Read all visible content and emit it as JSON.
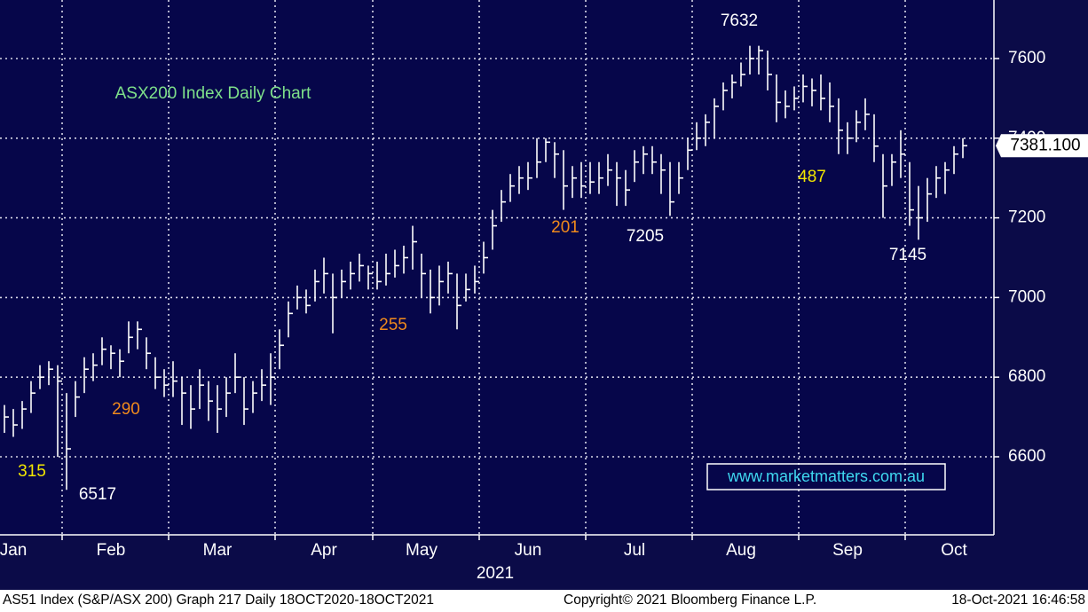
{
  "chart_data": {
    "type": "ohlc",
    "title": "ASX200 Index Daily Chart",
    "title_color": "#7ee08a",
    "color": "#ffffff",
    "xlabel": "2021",
    "watermark": "www.marketmatters.com.au",
    "ylim": [
      6404,
      7747
    ],
    "yticks": [
      6600,
      6800,
      7000,
      7200,
      7400,
      7600
    ],
    "xlim": [
      -0.5,
      111.5
    ],
    "xticks": [
      {
        "value": 1,
        "label": "Jan"
      },
      {
        "value": 12,
        "label": "Feb"
      },
      {
        "value": 24,
        "label": "Mar"
      },
      {
        "value": 36,
        "label": "Apr"
      },
      {
        "value": 47,
        "label": "May"
      },
      {
        "value": 59,
        "label": "Jun"
      },
      {
        "value": 71,
        "label": "Jul"
      },
      {
        "value": 83,
        "label": "Aug"
      },
      {
        "value": 95,
        "label": "Sep"
      },
      {
        "value": 107,
        "label": "Oct"
      }
    ],
    "xgrid": [
      6.5,
      18.5,
      30.5,
      41.5,
      53.5,
      65.5,
      77.5,
      89.5,
      101.5
    ],
    "grid": true,
    "high": [
      6730,
      6720,
      6740,
      6790,
      6830,
      6840,
      6830,
      6760,
      6790,
      6850,
      6860,
      6900,
      6880,
      6870,
      6940,
      6940,
      6900,
      6850,
      6820,
      6840,
      6800,
      6780,
      6820,
      6790,
      6780,
      6800,
      6860,
      6800,
      6790,
      6820,
      6860,
      6920,
      6990,
      7030,
      7020,
      7070,
      7100,
      7060,
      7070,
      7090,
      7110,
      7080,
      7090,
      7110,
      7120,
      7130,
      7180,
      7110,
      7070,
      7080,
      7090,
      7060,
      7060,
      7080,
      7140,
      7220,
      7270,
      7310,
      7330,
      7340,
      7400,
      7400,
      7390,
      7370,
      7330,
      7340,
      7340,
      7340,
      7360,
      7340,
      7320,
      7370,
      7380,
      7380,
      7360,
      7340,
      7340,
      7400,
      7440,
      7460,
      7500,
      7540,
      7560,
      7590,
      7632,
      7632,
      7620,
      7560,
      7520,
      7530,
      7560,
      7550,
      7560,
      7540,
      7500,
      7440,
      7470,
      7500,
      7460,
      7360,
      7360,
      7420,
      7340,
      7280,
      7300,
      7330,
      7340,
      7380,
      7400
    ],
    "low": [
      6660,
      6650,
      6670,
      6710,
      6770,
      6780,
      6600,
      6517,
      6700,
      6760,
      6790,
      6830,
      6820,
      6800,
      6860,
      6870,
      6820,
      6770,
      6750,
      6750,
      6680,
      6670,
      6720,
      6690,
      6660,
      6700,
      6760,
      6680,
      6710,
      6740,
      6730,
      6820,
      6900,
      6970,
      6960,
      6990,
      7010,
      6910,
      7000,
      7020,
      7040,
      7020,
      7020,
      7030,
      7050,
      7060,
      7070,
      7000,
      6960,
      6980,
      7010,
      6920,
      6990,
      7010,
      7060,
      7120,
      7190,
      7240,
      7260,
      7270,
      7300,
      7340,
      7300,
      7220,
      7250,
      7250,
      7260,
      7260,
      7280,
      7230,
      7230,
      7290,
      7310,
      7310,
      7260,
      7205,
      7260,
      7320,
      7370,
      7380,
      7400,
      7470,
      7500,
      7530,
      7560,
      7560,
      7520,
      7440,
      7450,
      7470,
      7490,
      7480,
      7470,
      7440,
      7360,
      7360,
      7390,
      7420,
      7340,
      7200,
      7280,
      7300,
      7180,
      7145,
      7190,
      7250,
      7260,
      7310,
      7350
    ],
    "close": [
      6700,
      6680,
      6720,
      6760,
      6800,
      6820,
      6790,
      6620,
      6750,
      6820,
      6830,
      6870,
      6860,
      6840,
      6900,
      6920,
      6860,
      6800,
      6780,
      6790,
      6760,
      6720,
      6780,
      6740,
      6720,
      6760,
      6800,
      6720,
      6760,
      6780,
      6800,
      6880,
      6960,
      7000,
      6980,
      7040,
      7060,
      7000,
      7040,
      7060,
      7080,
      7060,
      7040,
      7060,
      7080,
      7100,
      7140,
      7060,
      7000,
      7040,
      7060,
      6980,
      7020,
      7040,
      7100,
      7180,
      7240,
      7280,
      7300,
      7300,
      7340,
      7390,
      7360,
      7280,
      7300,
      7280,
      7290,
      7300,
      7320,
      7300,
      7270,
      7340,
      7360,
      7340,
      7320,
      7240,
      7300,
      7370,
      7400,
      7440,
      7480,
      7520,
      7540,
      7560,
      7600,
      7620,
      7560,
      7490,
      7480,
      7500,
      7530,
      7520,
      7500,
      7480,
      7420,
      7400,
      7440,
      7460,
      7380,
      7280,
      7340,
      7360,
      7220,
      7200,
      7260,
      7300,
      7320,
      7360,
      7381.1
    ],
    "last_price": {
      "value": 7381.1,
      "label": "7381.100"
    },
    "annotations": [
      {
        "text": "315",
        "color": "#f2e600"
      },
      {
        "text": "6517",
        "color": "#ffffff"
      },
      {
        "text": "290",
        "color": "#f08a1c"
      },
      {
        "text": "255",
        "color": "#f08a1c"
      },
      {
        "text": "201",
        "color": "#f08a1c"
      },
      {
        "text": "7205",
        "color": "#ffffff"
      },
      {
        "text": "7632",
        "color": "#ffffff"
      },
      {
        "text": "487",
        "color": "#f2e600"
      },
      {
        "text": "7145",
        "color": "#ffffff"
      }
    ]
  },
  "footer": {
    "left": "AS51 Index (S&P/ASX 200) Graph 217  Daily 18OCT2020-18OCT2021",
    "middle": "Copyright© 2021 Bloomberg Finance L.P.",
    "right": "18-Oct-2021 16:46:58"
  }
}
